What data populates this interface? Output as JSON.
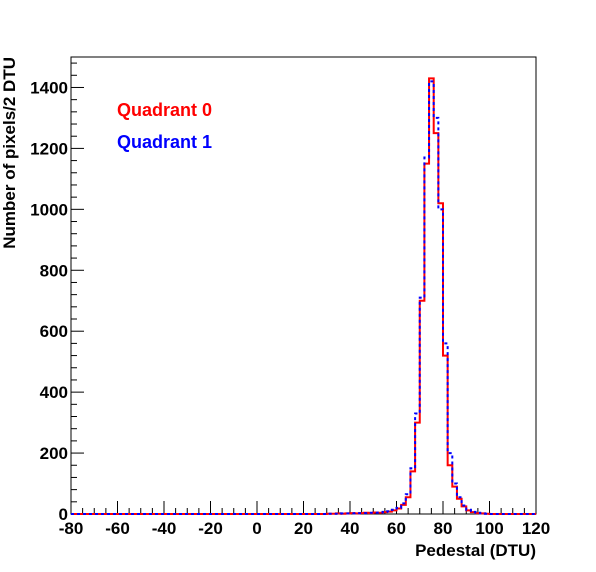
{
  "chart_data": {
    "type": "histogram",
    "xlabel": "Pedestal (DTU)",
    "ylabel": "Number of pixels/2 DTU",
    "xlim": [
      -80,
      120
    ],
    "ylim": [
      0,
      1500
    ],
    "xticks": [
      "-80",
      "-60",
      "-40",
      "-20",
      "0",
      "20",
      "40",
      "60",
      "80",
      "100",
      "120"
    ],
    "yticks": [
      "0",
      "200",
      "400",
      "600",
      "800",
      "1000",
      "1200",
      "1400"
    ],
    "bin_width": 2,
    "x": [
      30,
      32,
      34,
      36,
      38,
      40,
      42,
      44,
      46,
      48,
      50,
      52,
      54,
      56,
      58,
      60,
      62,
      64,
      66,
      68,
      70,
      72,
      74,
      76,
      78,
      80,
      82,
      84,
      86,
      88,
      90,
      92,
      94,
      96,
      98,
      100
    ],
    "series": [
      {
        "name": "Quadrant 0",
        "color": "#ff0000",
        "line_style": "solid",
        "values": [
          1,
          1,
          2,
          1,
          2,
          3,
          2,
          3,
          4,
          3,
          5,
          4,
          6,
          8,
          12,
          18,
          30,
          55,
          140,
          300,
          700,
          1150,
          1430,
          1250,
          1020,
          520,
          160,
          90,
          50,
          25,
          12,
          6,
          3,
          2,
          1,
          0
        ]
      },
      {
        "name": "Quadrant 1",
        "color": "#0000ff",
        "line_style": "dashed",
        "values": [
          1,
          1,
          1,
          2,
          2,
          2,
          3,
          3,
          3,
          4,
          4,
          5,
          7,
          9,
          14,
          20,
          35,
          65,
          150,
          330,
          710,
          1170,
          1420,
          1300,
          1000,
          560,
          200,
          100,
          55,
          28,
          14,
          7,
          4,
          2,
          1,
          0
        ]
      }
    ],
    "legend": "top-left"
  }
}
